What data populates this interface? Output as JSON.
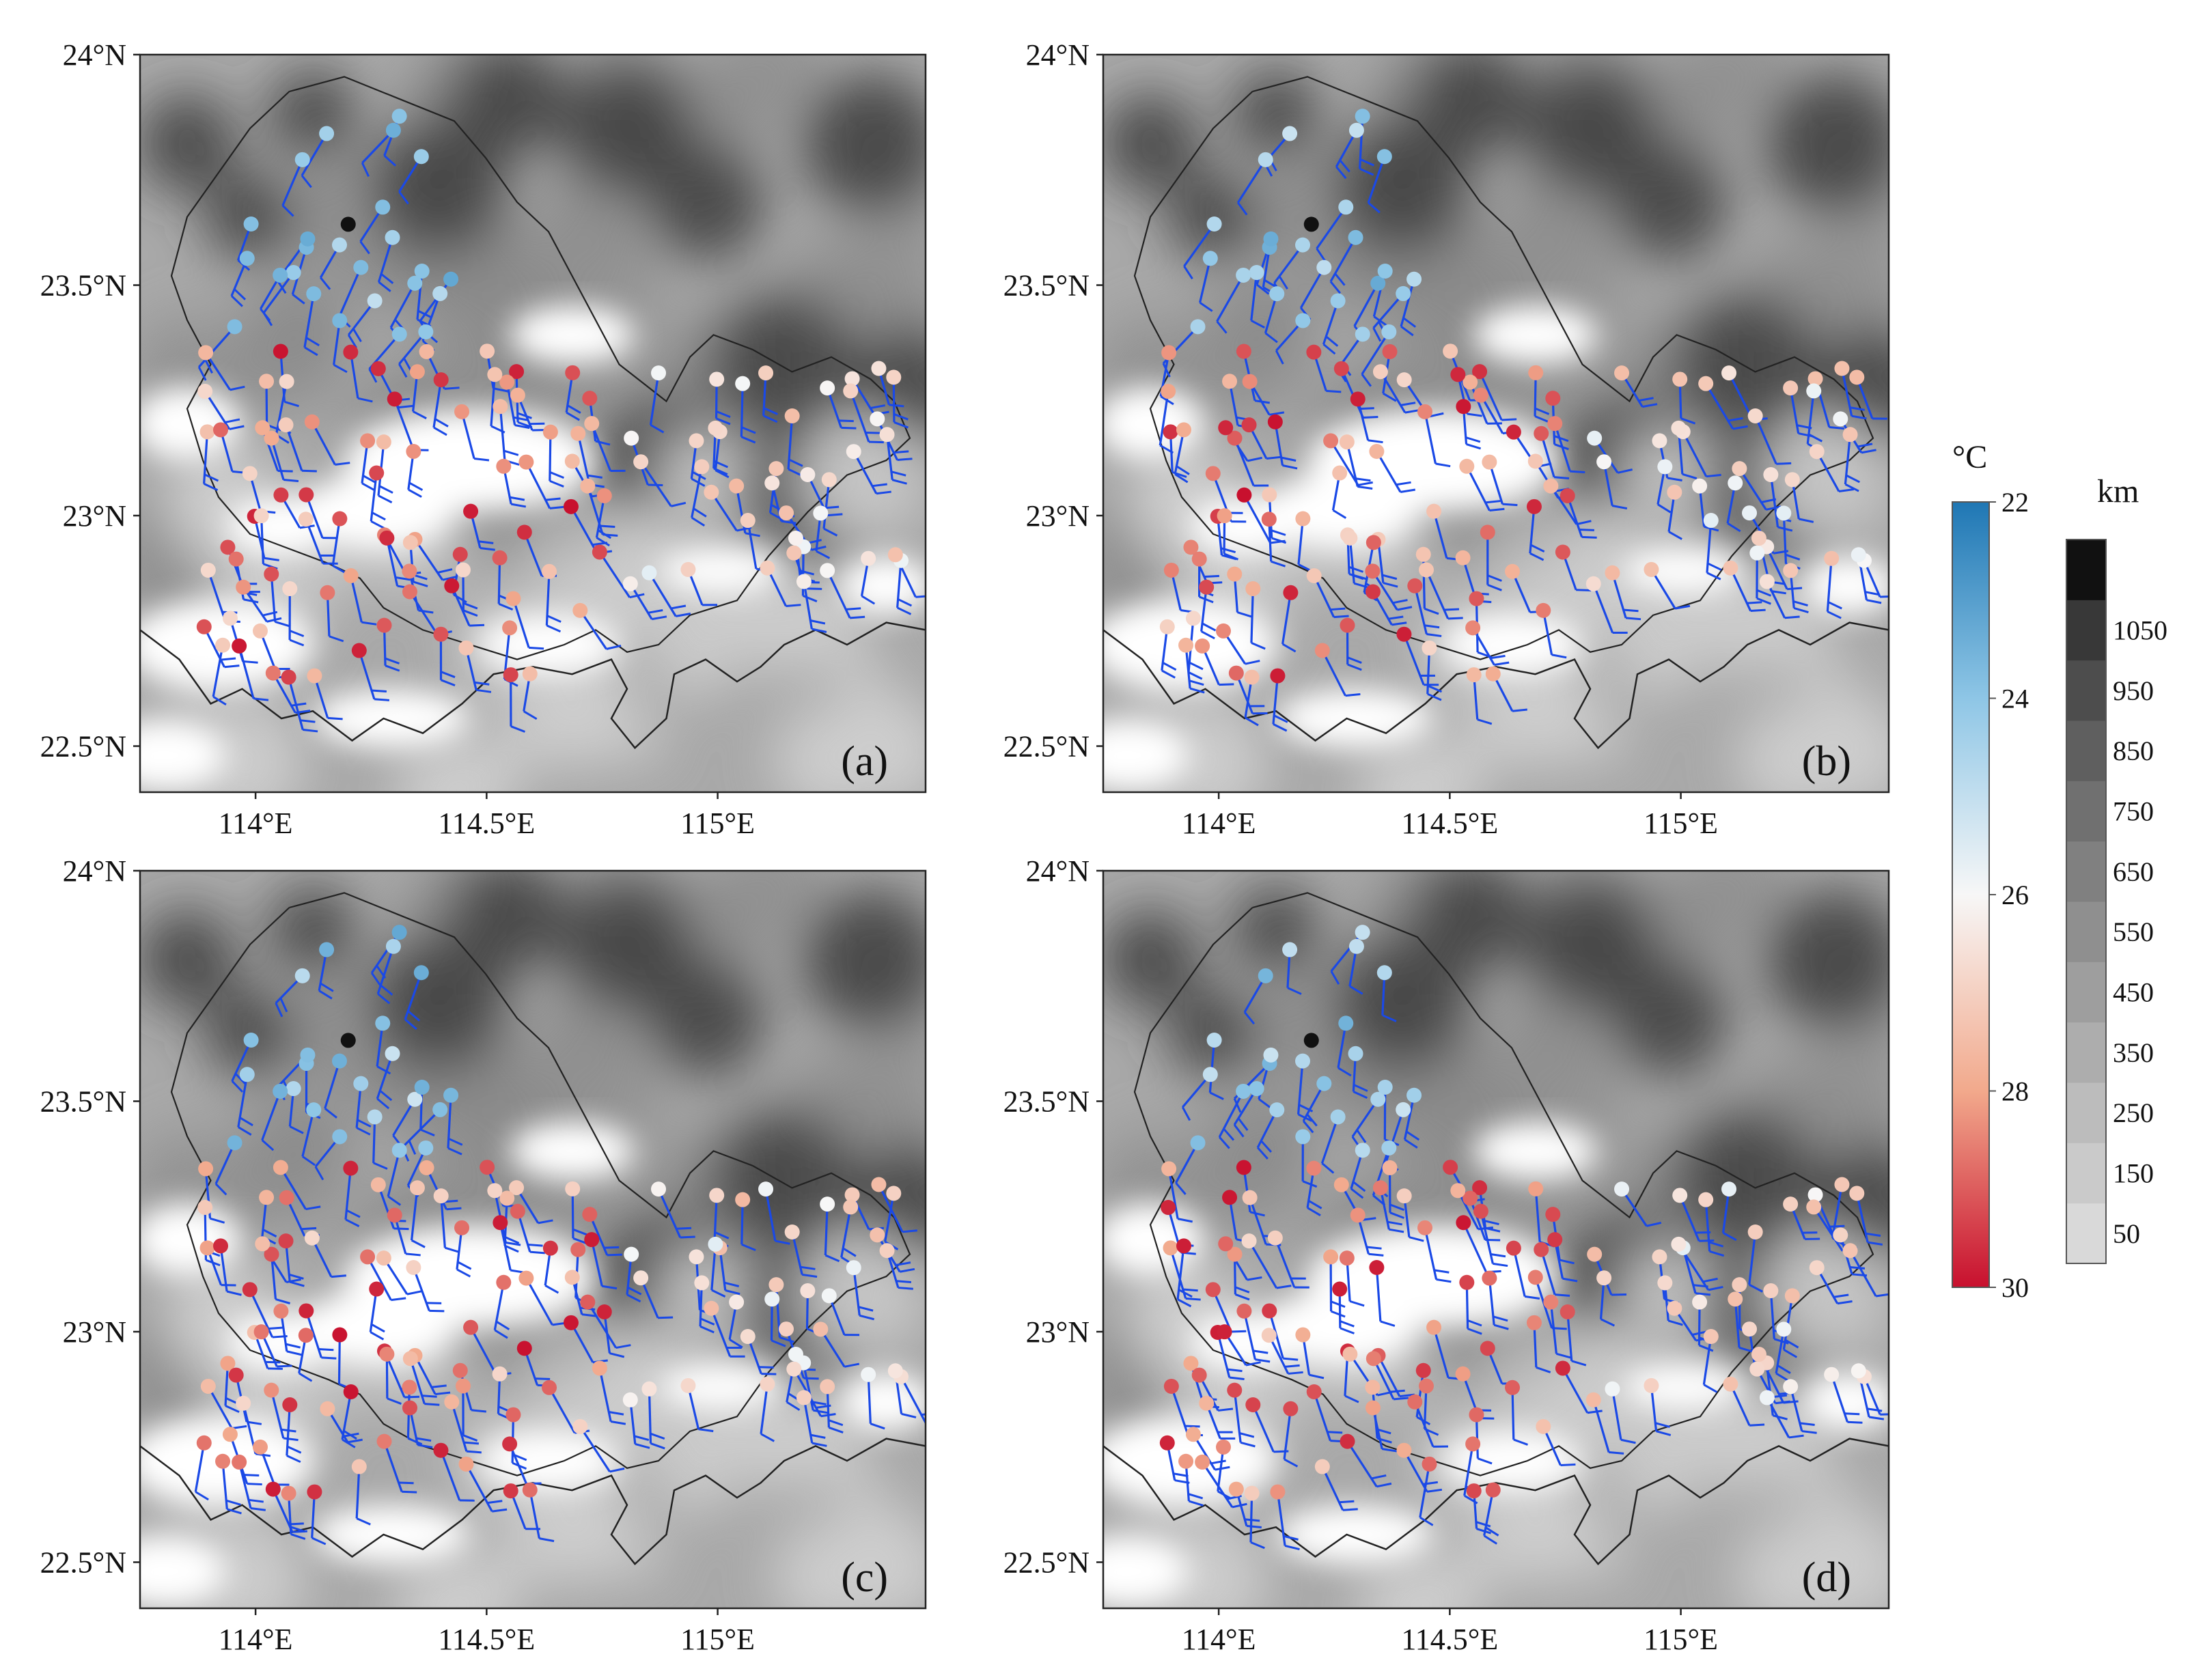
{
  "panels": [
    {
      "id": "a",
      "label": "(a)"
    },
    {
      "id": "b",
      "label": "(b)"
    },
    {
      "id": "c",
      "label": "(c)"
    },
    {
      "id": "d",
      "label": "(d)"
    }
  ],
  "axes": {
    "lon_ticks": [
      "114°E",
      "114.5°E",
      "115°E"
    ],
    "lat_ticks": [
      "24°N",
      "23.5°N",
      "23°N",
      "22.5°N"
    ],
    "lon_range": [
      113.75,
      115.45
    ],
    "lat_range": [
      22.4,
      24.0
    ]
  },
  "temperature_colorbar": {
    "unit": "°C",
    "labels": [
      "22",
      "24",
      "26",
      "28",
      "30"
    ],
    "colors": [
      "#1f77b4",
      "#8ec6e6",
      "#f7f7f7",
      "#f2a98c",
      "#c8102e"
    ]
  },
  "terrain_colorbar": {
    "unit": "km",
    "labels": [
      "50",
      "150",
      "250",
      "350",
      "450",
      "550",
      "650",
      "750",
      "850",
      "950",
      "1050"
    ],
    "colors": [
      "#d9d9d9",
      "#cacaca",
      "#bcbcbc",
      "#adadad",
      "#9e9e9e",
      "#8f8f8f",
      "#808080",
      "#707070",
      "#5f5f5f",
      "#4d4d4d",
      "#383838",
      "#111111"
    ]
  },
  "colors": {
    "wind_barb": "#1a49e6",
    "station_marker": "#111111",
    "coastline": "#222222"
  }
}
